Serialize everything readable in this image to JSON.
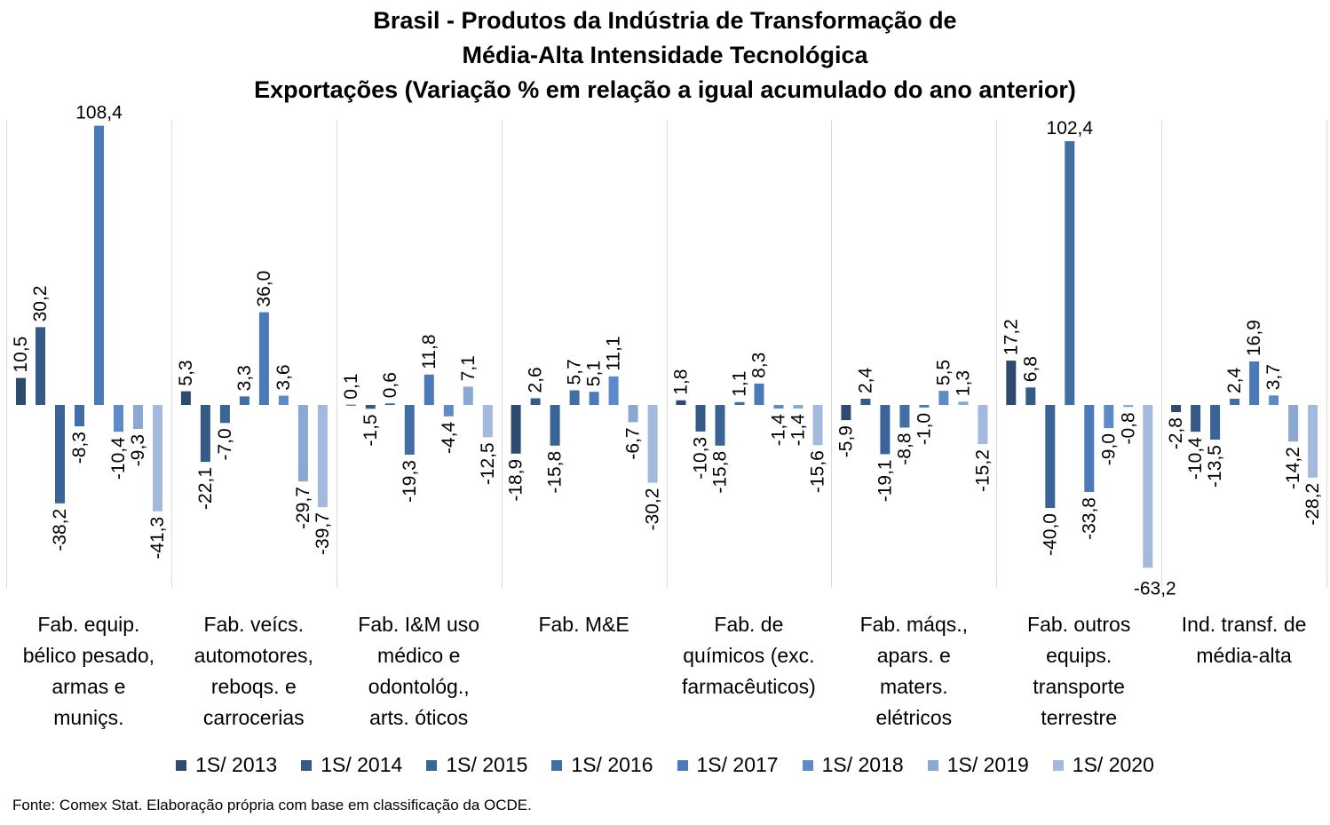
{
  "title_lines": [
    "Brasil - Produtos da Indústria de Transformação de",
    "Média-Alta Intensidade Tecnológica",
    "Exportações (Variação % em relação a igual acumulado do ano anterior)"
  ],
  "source": "Fonte: Comex Stat. Elaboração própria com base em classificação da OCDE.",
  "chart_data": {
    "type": "bar",
    "title": "Brasil - Produtos da Indústria de Transformação de Média-Alta Intensidade Tecnológica Exportações (Variação % em relação a igual acumulado do ano anterior)",
    "xlabel": "",
    "ylabel": "",
    "grid": false,
    "legend_position": "bottom",
    "categories": [
      [
        "Fab. equip.",
        "bélico pesado,",
        "armas e",
        "muniçs."
      ],
      [
        "Fab. veícs.",
        "automotores,",
        "reboqs. e",
        "carrocerias"
      ],
      [
        "Fab. I&M uso",
        "médico e",
        "odontológ.,",
        "arts. óticos"
      ],
      [
        "Fab. M&E"
      ],
      [
        "Fab. de",
        "químicos (exc.",
        "farmacêuticos)"
      ],
      [
        "Fab. máqs.,",
        "apars. e",
        "maters.",
        "elétricos"
      ],
      [
        "Fab. outros",
        "equips.",
        "transporte",
        "terrestre"
      ],
      [
        "Ind. transf. de",
        "média-alta"
      ]
    ],
    "series": [
      {
        "name": "1S/ 2013",
        "color": "#2e4a6e",
        "values": [
          10.5,
          5.3,
          0.1,
          -18.9,
          1.8,
          -5.9,
          17.2,
          -2.8
        ],
        "labels": [
          "10,5",
          "5,3",
          "0,1",
          "-18,9",
          "1,8",
          "-5,9",
          "17,2",
          "-2,8"
        ]
      },
      {
        "name": "1S/ 2014",
        "color": "#355a86",
        "values": [
          30.2,
          -22.1,
          -1.5,
          2.6,
          -10.3,
          2.4,
          6.8,
          -10.4
        ],
        "labels": [
          "30,2",
          "-22,1",
          "-1,5",
          "2,6",
          "-10,3",
          "2,4",
          "6,8",
          "-10,4"
        ]
      },
      {
        "name": "1S/ 2015",
        "color": "#3a6497",
        "values": [
          -38.2,
          -7.0,
          0.6,
          -15.8,
          -15.8,
          -19.1,
          -40.0,
          -13.5
        ],
        "labels": [
          "-38,2",
          "-7,0",
          "0,6",
          "-15,8",
          "-15,8",
          "-19,1",
          "-40,0",
          "-13,5"
        ]
      },
      {
        "name": "1S/ 2016",
        "color": "#416fa5",
        "values": [
          -8.3,
          3.3,
          -19.3,
          5.7,
          1.1,
          -8.8,
          102.4,
          2.4
        ],
        "labels": [
          "-8,3",
          "3,3",
          "-19,3",
          "5,7",
          "1,1",
          "-8,8",
          "102,4",
          "2,4"
        ]
      },
      {
        "name": "1S/ 2017",
        "color": "#4a7ab8",
        "values": [
          108.4,
          36.0,
          11.8,
          5.1,
          8.3,
          -1.0,
          -33.8,
          16.9
        ],
        "labels": [
          "108,4",
          "36,0",
          "11,8",
          "5,1",
          "8,3",
          "-1,0",
          "-33,8",
          "16,9"
        ]
      },
      {
        "name": "1S/ 2018",
        "color": "#5d8bc8",
        "values": [
          -10.4,
          3.6,
          -4.4,
          11.1,
          -1.4,
          5.5,
          -9.0,
          3.7
        ],
        "labels": [
          "-10,4",
          "3,6",
          "-4,4",
          "11,1",
          "-1,4",
          "5,5",
          "-9,0",
          "3,7"
        ]
      },
      {
        "name": "1S/ 2019",
        "color": "#8aa8d3",
        "values": [
          -9.3,
          -29.7,
          7.1,
          -6.7,
          -1.4,
          1.3,
          -0.8,
          -14.2
        ],
        "labels": [
          "-9,3",
          "-29,7",
          "7,1",
          "-6,7",
          "-1,4",
          "1,3",
          "-0,8",
          "-14,2"
        ]
      },
      {
        "name": "1S/ 2020",
        "color": "#a3b9de",
        "values": [
          -41.3,
          -39.7,
          -12.5,
          -30.2,
          -15.6,
          -15.2,
          -63.2,
          -28.2
        ],
        "labels": [
          "-41,3",
          "-39,7",
          "-12,5",
          "-30,2",
          "-15,6",
          "-15,2",
          "-63,2",
          "-28,2"
        ]
      }
    ]
  }
}
